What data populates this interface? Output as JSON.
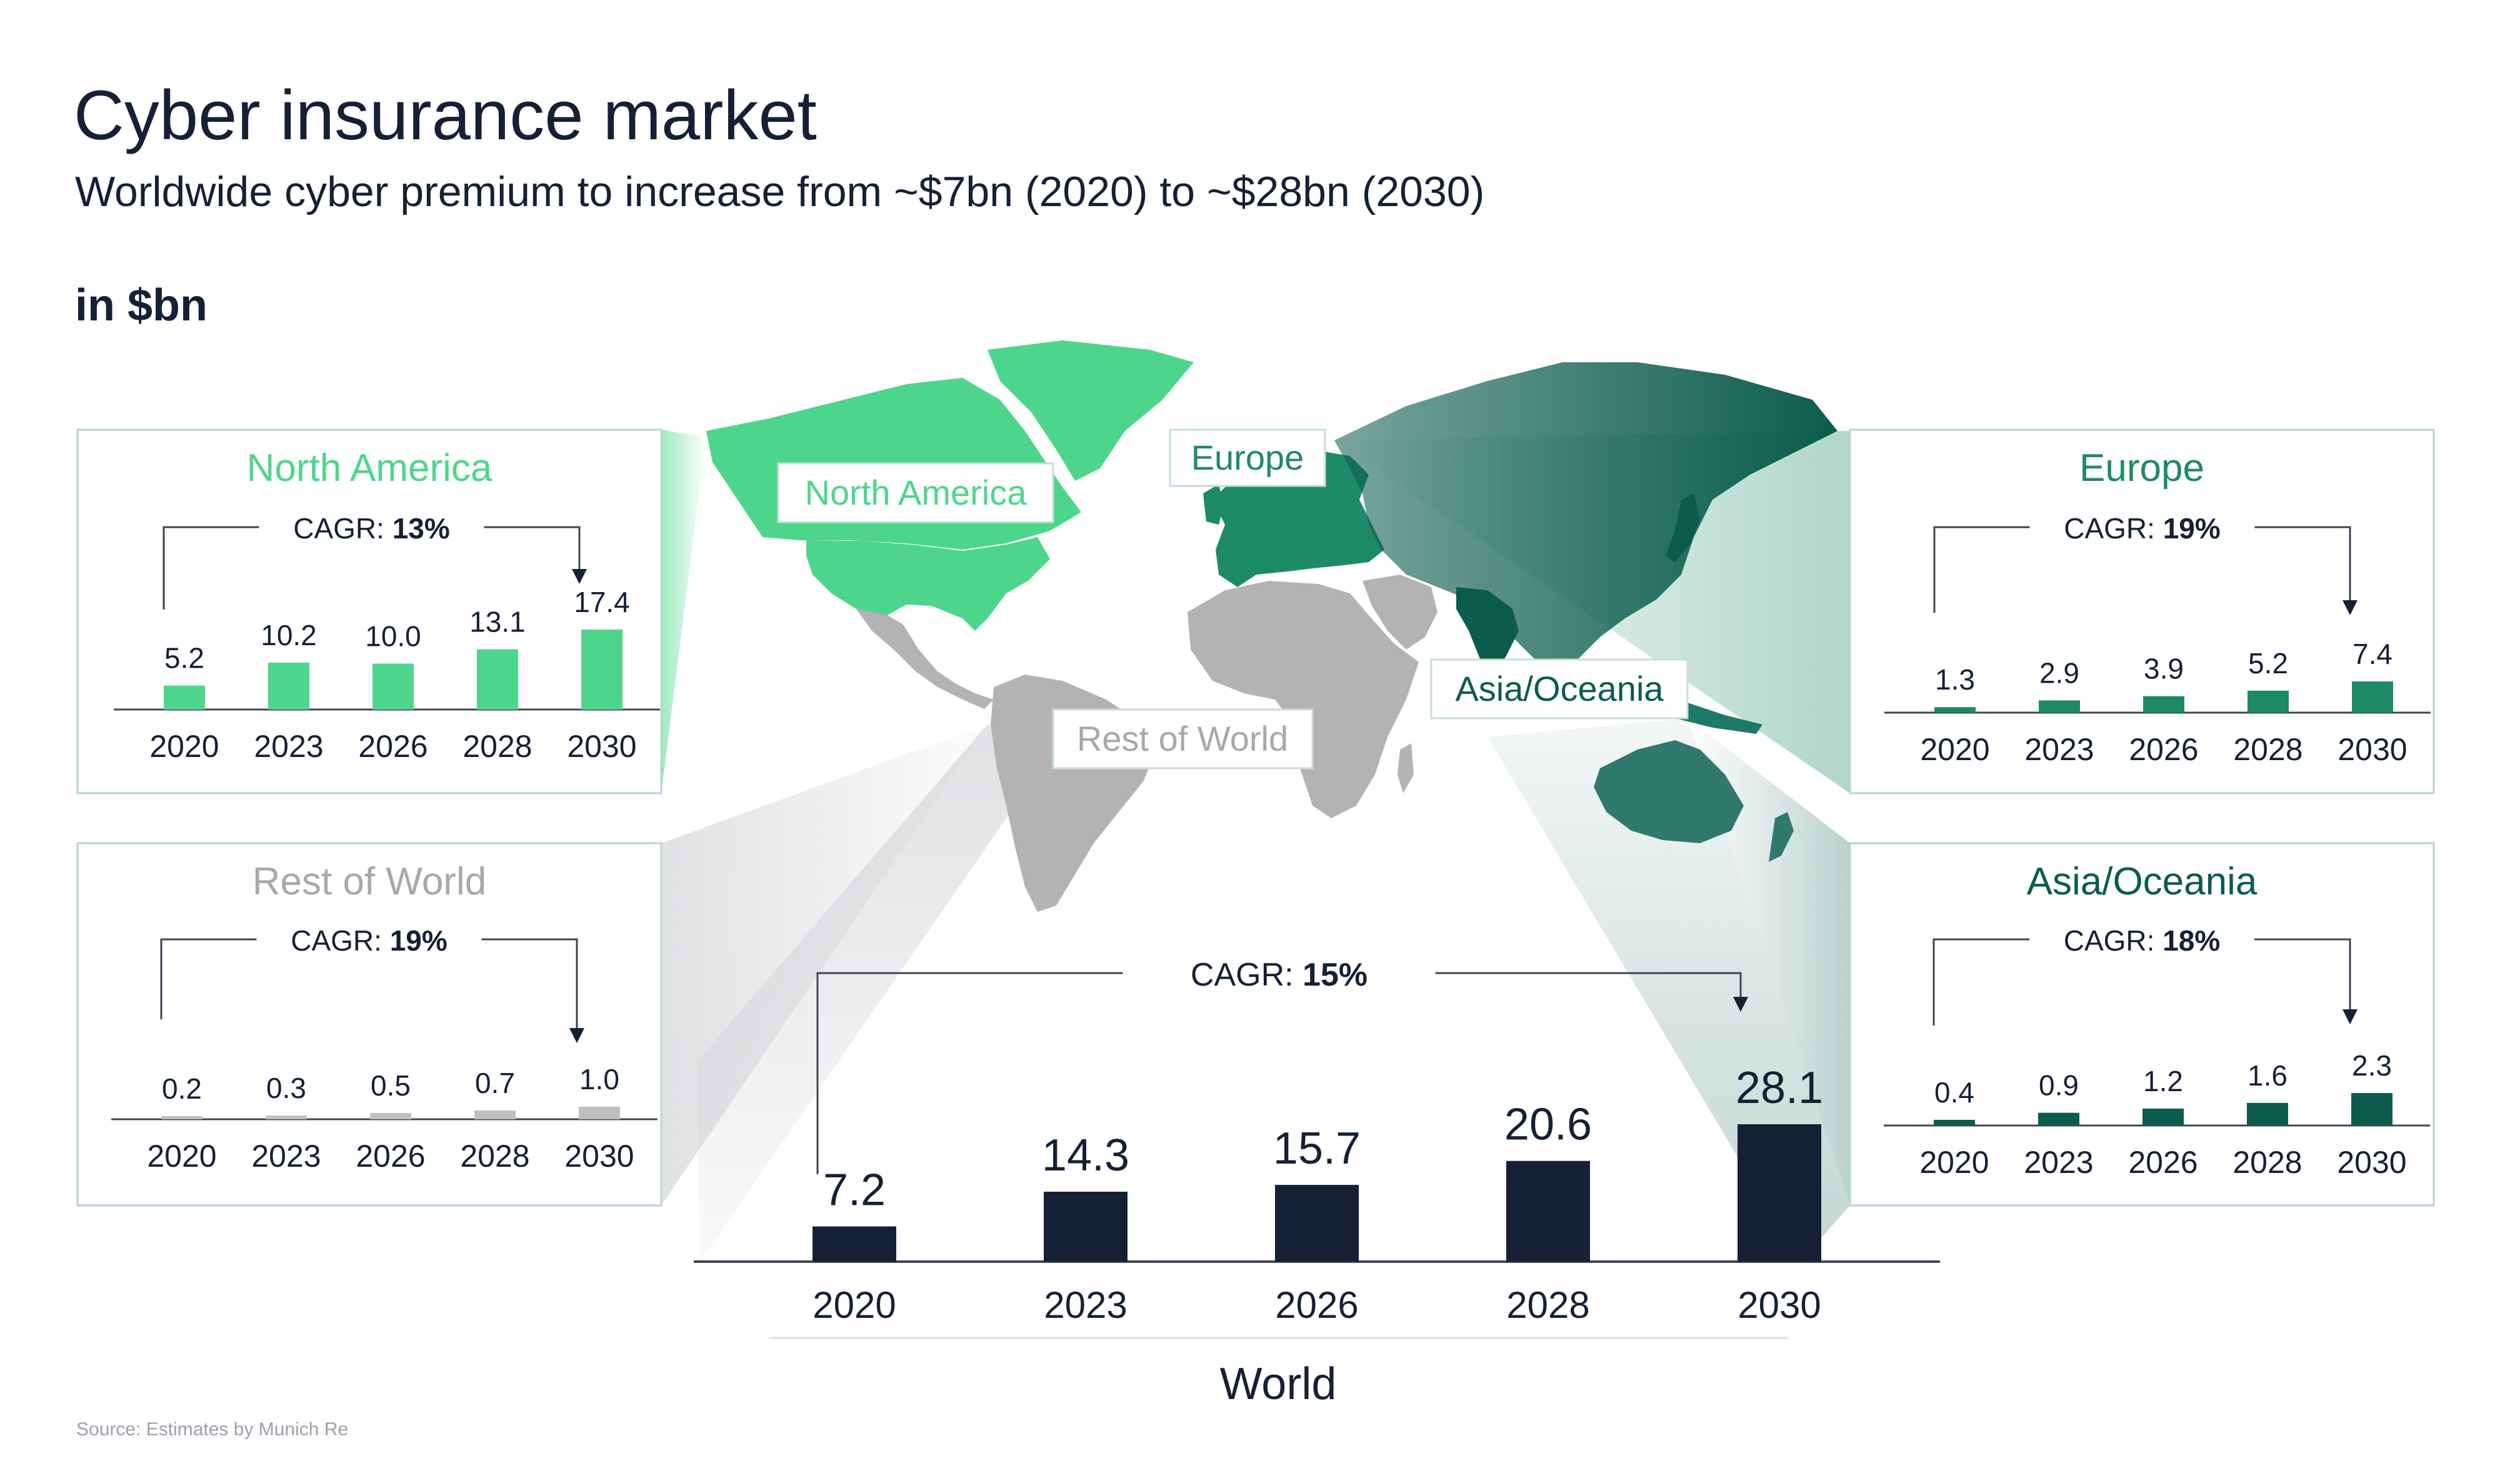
{
  "title": "Cyber insurance market",
  "subtitle": "Worldwide cyber premium to increase from ~$7bn (2020) to ~$28bn (2030)",
  "unit_label": "in $bn",
  "source": "Source: Estimates by Munich Re",
  "colors": {
    "north_america": "#4dd68b",
    "europe": "#1d8a66",
    "asia_oceania": "#0b5c4c",
    "rest_of_world": "#b9b9b9",
    "world": "#152035",
    "panel_border": "#b9d5cb",
    "map_grey": "#b3b3b3"
  },
  "map_labels": [
    "North America",
    "Europe",
    "Asia/Oceania",
    "Rest of World"
  ],
  "chart_data": [
    {
      "id": "north_america",
      "type": "bar",
      "title": "North America",
      "cagr_label": "CAGR:",
      "cagr_value": "13%",
      "categories": [
        "2020",
        "2023",
        "2026",
        "2028",
        "2030"
      ],
      "values": [
        5.2,
        10.2,
        10.0,
        13.1,
        17.4
      ],
      "value_labels": [
        "5.2",
        "10.2",
        "10.0",
        "13.1",
        "17.4"
      ]
    },
    {
      "id": "europe",
      "type": "bar",
      "title": "Europe",
      "cagr_label": "CAGR:",
      "cagr_value": "19%",
      "categories": [
        "2020",
        "2023",
        "2026",
        "2028",
        "2030"
      ],
      "values": [
        1.3,
        2.9,
        3.9,
        5.2,
        7.4
      ],
      "value_labels": [
        "1.3",
        "2.9",
        "3.9",
        "5.2",
        "7.4"
      ]
    },
    {
      "id": "rest_of_world",
      "type": "bar",
      "title": "Rest of World",
      "cagr_label": "CAGR:",
      "cagr_value": "19%",
      "categories": [
        "2020",
        "2023",
        "2026",
        "2028",
        "2030"
      ],
      "values": [
        0.2,
        0.3,
        0.5,
        0.7,
        1.0
      ],
      "value_labels": [
        "0.2",
        "0.3",
        "0.5",
        "0.7",
        "1.0"
      ]
    },
    {
      "id": "asia_oceania",
      "type": "bar",
      "title": "Asia/Oceania",
      "cagr_label": "CAGR:",
      "cagr_value": "18%",
      "categories": [
        "2020",
        "2023",
        "2026",
        "2028",
        "2030"
      ],
      "values": [
        0.4,
        0.9,
        1.2,
        1.6,
        2.3
      ],
      "value_labels": [
        "0.4",
        "0.9",
        "1.2",
        "1.6",
        "2.3"
      ]
    },
    {
      "id": "world",
      "type": "bar",
      "title": "World",
      "cagr_label": "CAGR:",
      "cagr_value": "15%",
      "categories": [
        "2020",
        "2023",
        "2026",
        "2028",
        "2030"
      ],
      "values": [
        7.2,
        14.3,
        15.7,
        20.6,
        28.1
      ],
      "value_labels": [
        "7.2",
        "14.3",
        "15.7",
        "20.6",
        "28.1"
      ]
    }
  ]
}
